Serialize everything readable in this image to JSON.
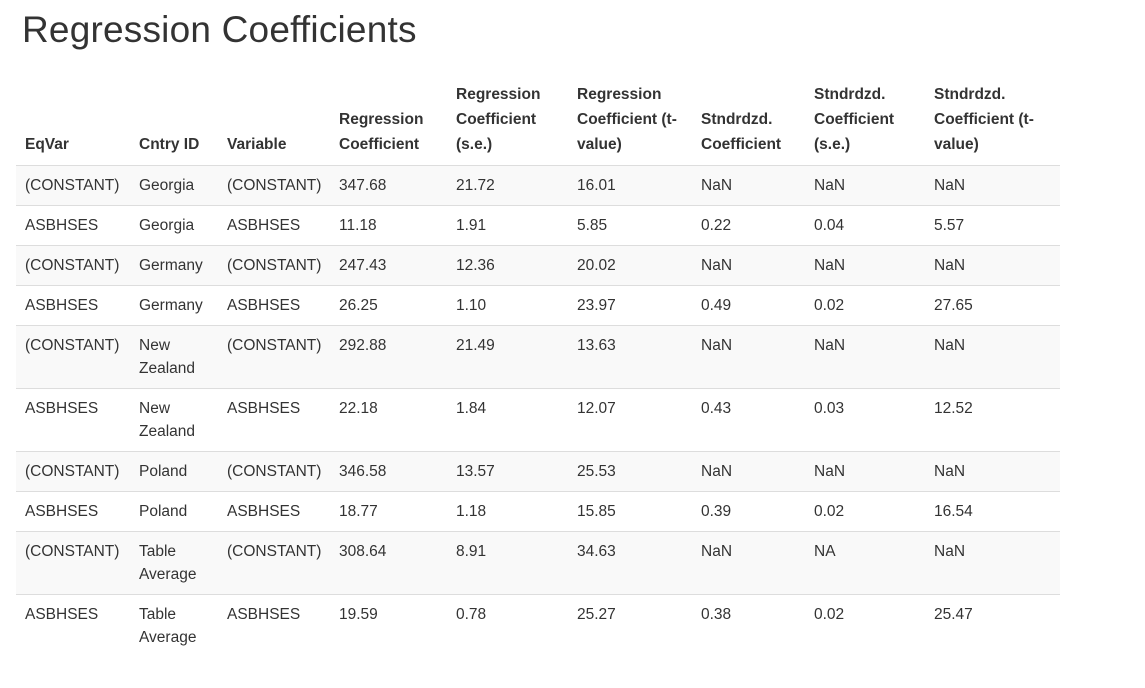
{
  "page": {
    "title": "Regression Coefficients"
  },
  "table": {
    "columns": [
      {
        "key": "eqvar",
        "label": "EqVar"
      },
      {
        "key": "cntry-id",
        "label": "Cntry ID"
      },
      {
        "key": "variable",
        "label": "Variable"
      },
      {
        "key": "reg-coef",
        "label": "Regression\nCoefficient"
      },
      {
        "key": "reg-se",
        "label": "Regression\nCoefficient\n(s.e.)"
      },
      {
        "key": "reg-t",
        "label": "Regression\nCoefficient (t-\nvalue)"
      },
      {
        "key": "std-coef",
        "label": "Stndrdzd.\nCoefficient"
      },
      {
        "key": "std-se",
        "label": "Stndrdzd.\nCoefficient\n(s.e.)"
      },
      {
        "key": "std-t",
        "label": "Stndrdzd.\nCoefficient (t-\nvalue)"
      }
    ],
    "rows": [
      [
        "(CONSTANT)",
        "Georgia",
        "(CONSTANT)",
        "347.68",
        "21.72",
        "16.01",
        "NaN",
        "NaN",
        "NaN"
      ],
      [
        "ASBHSES",
        "Georgia",
        "ASBHSES",
        "11.18",
        "1.91",
        "5.85",
        "0.22",
        "0.04",
        "5.57"
      ],
      [
        "(CONSTANT)",
        "Germany",
        "(CONSTANT)",
        "247.43",
        "12.36",
        "20.02",
        "NaN",
        "NaN",
        "NaN"
      ],
      [
        "ASBHSES",
        "Germany",
        "ASBHSES",
        "26.25",
        "1.10",
        "23.97",
        "0.49",
        "0.02",
        "27.65"
      ],
      [
        "(CONSTANT)",
        "New Zealand",
        "(CONSTANT)",
        "292.88",
        "21.49",
        "13.63",
        "NaN",
        "NaN",
        "NaN"
      ],
      [
        "ASBHSES",
        "New Zealand",
        "ASBHSES",
        "22.18",
        "1.84",
        "12.07",
        "0.43",
        "0.03",
        "12.52"
      ],
      [
        "(CONSTANT)",
        "Poland",
        "(CONSTANT)",
        "346.58",
        "13.57",
        "25.53",
        "NaN",
        "NaN",
        "NaN"
      ],
      [
        "ASBHSES",
        "Poland",
        "ASBHSES",
        "18.77",
        "1.18",
        "15.85",
        "0.39",
        "0.02",
        "16.54"
      ],
      [
        "(CONSTANT)",
        "Table Average",
        "(CONSTANT)",
        "308.64",
        "8.91",
        "34.63",
        "NaN",
        "NA",
        "NaN"
      ],
      [
        "ASBHSES",
        "Table Average",
        "ASBHSES",
        "19.59",
        "0.78",
        "25.27",
        "0.38",
        "0.02",
        "25.47"
      ]
    ]
  },
  "chart_data": {
    "type": "table",
    "title": "Regression Coefficients",
    "columns": [
      "EqVar",
      "Cntry ID",
      "Variable",
      "Regression Coefficient",
      "Regression Coefficient (s.e.)",
      "Regression Coefficient (t-value)",
      "Stndrdzd. Coefficient",
      "Stndrdzd. Coefficient (s.e.)",
      "Stndrdzd. Coefficient (t-value)"
    ],
    "rows": [
      [
        "(CONSTANT)",
        "Georgia",
        "(CONSTANT)",
        347.68,
        21.72,
        16.01,
        "NaN",
        "NaN",
        "NaN"
      ],
      [
        "ASBHSES",
        "Georgia",
        "ASBHSES",
        11.18,
        1.91,
        5.85,
        0.22,
        0.04,
        5.57
      ],
      [
        "(CONSTANT)",
        "Germany",
        "(CONSTANT)",
        247.43,
        12.36,
        20.02,
        "NaN",
        "NaN",
        "NaN"
      ],
      [
        "ASBHSES",
        "Germany",
        "ASBHSES",
        26.25,
        1.1,
        23.97,
        0.49,
        0.02,
        27.65
      ],
      [
        "(CONSTANT)",
        "New Zealand",
        "(CONSTANT)",
        292.88,
        21.49,
        13.63,
        "NaN",
        "NaN",
        "NaN"
      ],
      [
        "ASBHSES",
        "New Zealand",
        "ASBHSES",
        22.18,
        1.84,
        12.07,
        0.43,
        0.03,
        12.52
      ],
      [
        "(CONSTANT)",
        "Poland",
        "(CONSTANT)",
        346.58,
        13.57,
        25.53,
        "NaN",
        "NaN",
        "NaN"
      ],
      [
        "ASBHSES",
        "Poland",
        "ASBHSES",
        18.77,
        1.18,
        15.85,
        0.39,
        0.02,
        16.54
      ],
      [
        "(CONSTANT)",
        "Table Average",
        "(CONSTANT)",
        308.64,
        8.91,
        34.63,
        "NaN",
        "NA",
        "NaN"
      ],
      [
        "ASBHSES",
        "Table Average",
        "ASBHSES",
        19.59,
        0.78,
        25.27,
        0.38,
        0.02,
        25.47
      ]
    ]
  }
}
